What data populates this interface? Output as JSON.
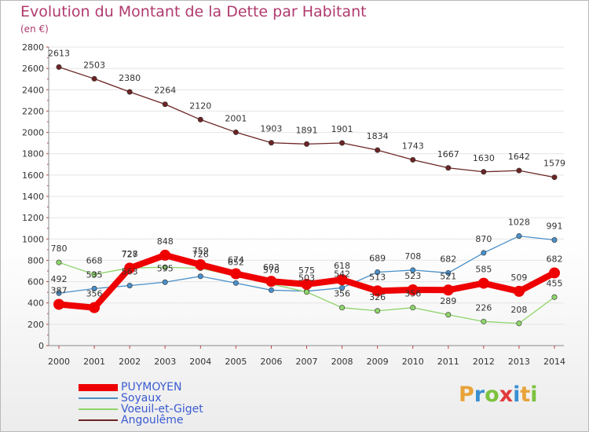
{
  "title": "Evolution du Montant de la Dette par Habitant",
  "unit": "(en €)",
  "logo": {
    "letters": [
      "P",
      "r",
      "o",
      "x",
      "i",
      "t",
      "i"
    ],
    "colors": [
      "#e8a33a",
      "#3a8fd0",
      "#7cc23e",
      "#e23a3a",
      "#3a8fd0",
      "#e8a33a",
      "#7cc23e"
    ]
  },
  "chart_data": {
    "type": "line",
    "title": "Evolution du Montant de la Dette par Habitant",
    "ylabel": "(en €)",
    "ylim": [
      0,
      2800
    ],
    "yticks": [
      0,
      200,
      400,
      600,
      800,
      1000,
      1200,
      1400,
      1600,
      1800,
      2000,
      2200,
      2400,
      2600,
      2800
    ],
    "x": [
      2000,
      2001,
      2002,
      2003,
      2004,
      2005,
      2006,
      2007,
      2008,
      2009,
      2010,
      2011,
      2012,
      2013,
      2014
    ],
    "legend_position": "bottom-left",
    "series": [
      {
        "name": "Angoulême",
        "color": "#6b2424",
        "values": [
          2613,
          2503,
          2380,
          2264,
          2120,
          2001,
          1903,
          1891,
          1901,
          1834,
          1743,
          1667,
          1630,
          1642,
          1579
        ],
        "labels": [
          "2613",
          "2503",
          "2380",
          "2264",
          "2120",
          "2001",
          "1903",
          "1891",
          "1901",
          "1834",
          "1743",
          "1667",
          "1630",
          "1642",
          "1579"
        ]
      },
      {
        "name": "Soyaux",
        "color": "#4a8fc8",
        "values": [
          492,
          535,
          563,
          595,
          650,
          587,
          520,
          510,
          542,
          689,
          708,
          682,
          870,
          1028,
          991
        ],
        "labels": [
          "492",
          "535",
          "563",
          "595",
          "",
          "",
          "",
          "",
          "542",
          "689",
          "708",
          "682",
          "870",
          "1028",
          "991"
        ]
      },
      {
        "name": "Voeuil-et-Giget",
        "color": "#8ed46a",
        "values": [
          780,
          668,
          728,
          735,
          726,
          652,
          578,
          503,
          356,
          326,
          356,
          289,
          226,
          208,
          455
        ],
        "labels": [
          "780",
          "668",
          "728",
          "",
          "726",
          "652",
          "578",
          "503",
          "356",
          "326",
          "356",
          "289",
          "226",
          "208",
          "455"
        ]
      },
      {
        "name": "PUYMOYEN",
        "color": "#ee0000",
        "values": [
          387,
          356,
          727,
          848,
          759,
          674,
          603,
          575,
          618,
          513,
          523,
          521,
          585,
          509,
          682
        ],
        "labels": [
          "387",
          "356",
          "727",
          "848",
          "759",
          "674",
          "603",
          "575",
          "618",
          "513",
          "523",
          "521",
          "585",
          "509",
          "682"
        ]
      }
    ]
  }
}
